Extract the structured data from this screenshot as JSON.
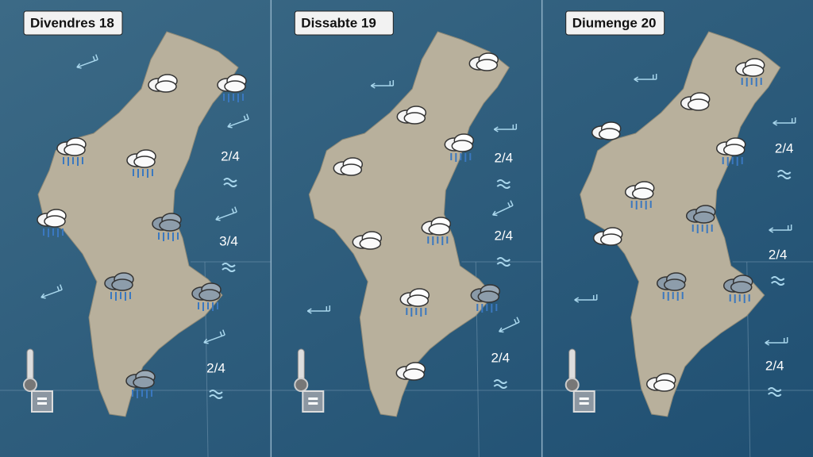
{
  "panels": [
    {
      "title": "Divendres 18",
      "sea_states": [
        "2/4",
        "3/4",
        "2/4"
      ]
    },
    {
      "title": "Dissabte 19",
      "sea_states": [
        "2/4",
        "2/4",
        "2/4"
      ]
    },
    {
      "title": "Diumenge 20",
      "sea_states": [
        "2/4",
        "2/4",
        "2/4"
      ]
    }
  ]
}
